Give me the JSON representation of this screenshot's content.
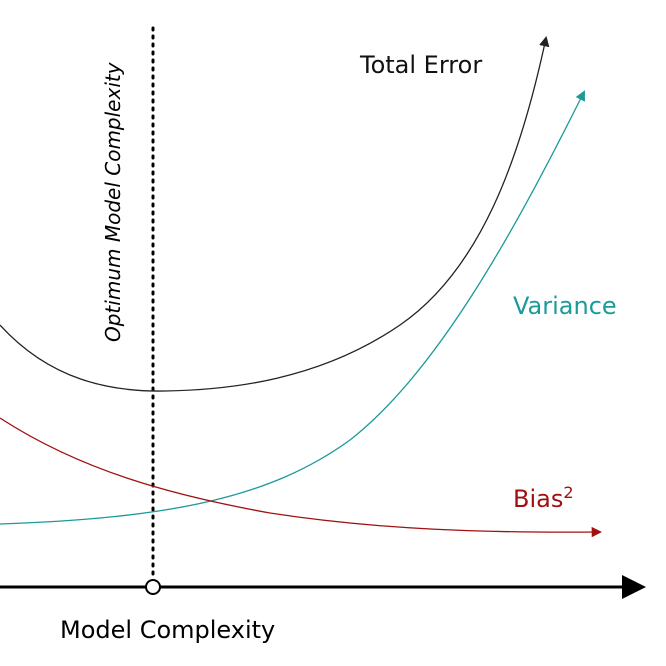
{
  "diagram": {
    "vertical_label": "Optimum Model Complexity",
    "x_axis_label": "Model Complexity",
    "curves": {
      "total_error": {
        "label": "Total Error",
        "color": "#222222"
      },
      "variance": {
        "label": "Variance",
        "color": "#1a9a9a"
      },
      "bias": {
        "label": "Bias",
        "superscript": "2",
        "color": "#a01010"
      }
    },
    "axis_color": "#000000"
  }
}
